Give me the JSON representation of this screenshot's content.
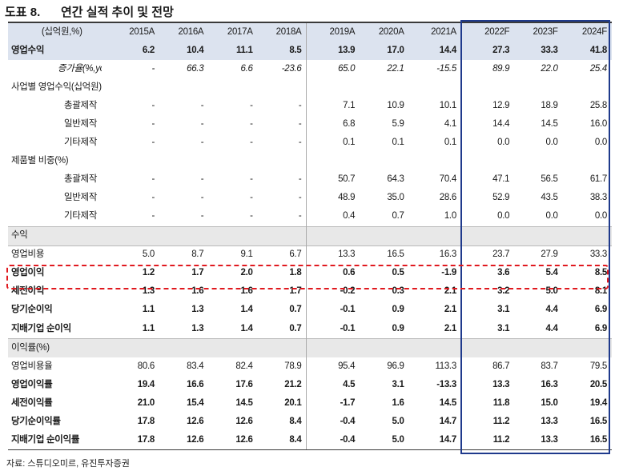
{
  "figure_label": "도표 8.",
  "title": "연간 실적 추이 및 전망",
  "header": {
    "unit": "(십억원,%)",
    "years": [
      "2015A",
      "2016A",
      "2017A",
      "2018A",
      "2019A",
      "2020A",
      "2021A",
      "2022F",
      "2023F",
      "2024F"
    ]
  },
  "rows": [
    {
      "label": "영업수익",
      "values": [
        "6.2",
        "10.4",
        "11.1",
        "8.5",
        "13.9",
        "17.0",
        "14.4",
        "27.3",
        "33.3",
        "41.8"
      ]
    },
    {
      "label": "증가율(%,yoy)",
      "values": [
        "-",
        "66.3",
        "6.6",
        "-23.6",
        "65.0",
        "22.1",
        "-15.5",
        "89.9",
        "22.0",
        "25.4"
      ]
    },
    {
      "label": "사업별 영업수익(십억원)",
      "values": [
        "",
        "",
        "",
        "",
        "",
        "",
        "",
        "",
        "",
        ""
      ]
    },
    {
      "label": "총괄제작",
      "values": [
        "-",
        "-",
        "-",
        "-",
        "7.1",
        "10.9",
        "10.1",
        "12.9",
        "18.9",
        "25.8"
      ]
    },
    {
      "label": "일반제작",
      "values": [
        "-",
        "-",
        "-",
        "-",
        "6.8",
        "5.9",
        "4.1",
        "14.4",
        "14.5",
        "16.0"
      ]
    },
    {
      "label": "기타제작",
      "values": [
        "-",
        "-",
        "-",
        "-",
        "0.1",
        "0.1",
        "0.1",
        "0.0",
        "0.0",
        "0.0"
      ]
    },
    {
      "label": "제품별 비중(%)",
      "values": [
        "",
        "",
        "",
        "",
        "",
        "",
        "",
        "",
        "",
        ""
      ]
    },
    {
      "label": "총괄제작",
      "values": [
        "-",
        "-",
        "-",
        "-",
        "50.7",
        "64.3",
        "70.4",
        "47.1",
        "56.5",
        "61.7"
      ]
    },
    {
      "label": "일반제작",
      "values": [
        "-",
        "-",
        "-",
        "-",
        "48.9",
        "35.0",
        "28.6",
        "52.9",
        "43.5",
        "38.3"
      ]
    },
    {
      "label": "기타제작",
      "values": [
        "-",
        "-",
        "-",
        "-",
        "0.4",
        "0.7",
        "1.0",
        "0.0",
        "0.0",
        "0.0"
      ]
    },
    {
      "label": "수익",
      "values": [
        "",
        "",
        "",
        "",
        "",
        "",
        "",
        "",
        "",
        ""
      ]
    },
    {
      "label": "영업비용",
      "values": [
        "5.0",
        "8.7",
        "9.1",
        "6.7",
        "13.3",
        "16.5",
        "16.3",
        "23.7",
        "27.9",
        "33.3"
      ]
    },
    {
      "label": "영업이익",
      "values": [
        "1.2",
        "1.7",
        "2.0",
        "1.8",
        "0.6",
        "0.5",
        "-1.9",
        "3.6",
        "5.4",
        "8.5"
      ]
    },
    {
      "label": "세전이익",
      "values": [
        "1.3",
        "1.6",
        "1.6",
        "1.7",
        "-0.2",
        "0.3",
        "2.1",
        "3.2",
        "5.0",
        "8.1"
      ]
    },
    {
      "label": "당기순이익",
      "values": [
        "1.1",
        "1.3",
        "1.4",
        "0.7",
        "-0.1",
        "0.9",
        "2.1",
        "3.1",
        "4.4",
        "6.9"
      ]
    },
    {
      "label": "지배기업 순이익",
      "values": [
        "1.1",
        "1.3",
        "1.4",
        "0.7",
        "-0.1",
        "0.9",
        "2.1",
        "3.1",
        "4.4",
        "6.9"
      ]
    },
    {
      "label": "이익률(%)",
      "values": [
        "",
        "",
        "",
        "",
        "",
        "",
        "",
        "",
        "",
        ""
      ]
    },
    {
      "label": "영업비용율",
      "values": [
        "80.6",
        "83.4",
        "82.4",
        "78.9",
        "95.4",
        "96.9",
        "113.3",
        "86.7",
        "83.7",
        "79.5"
      ]
    },
    {
      "label": "영업이익률",
      "values": [
        "19.4",
        "16.6",
        "17.6",
        "21.2",
        "4.5",
        "3.1",
        "-13.3",
        "13.3",
        "16.3",
        "20.5"
      ]
    },
    {
      "label": "세전이익률",
      "values": [
        "21.0",
        "15.4",
        "14.5",
        "20.1",
        "-1.7",
        "1.6",
        "14.5",
        "11.8",
        "15.0",
        "19.4"
      ]
    },
    {
      "label": "당기순이익률",
      "values": [
        "17.8",
        "12.6",
        "12.6",
        "8.4",
        "-0.4",
        "5.0",
        "14.7",
        "11.2",
        "13.3",
        "16.5"
      ]
    },
    {
      "label": "지배기업 순이익률",
      "values": [
        "17.8",
        "12.6",
        "12.6",
        "8.4",
        "-0.4",
        "5.0",
        "14.7",
        "11.2",
        "13.3",
        "16.5"
      ]
    }
  ],
  "source": "자료: 스튜디오미르, 유진투자증권",
  "colors": {
    "header_fill": "#dce3ef",
    "band_fill": "#e8e8e8",
    "forecast_box": "#1f3a8c",
    "highlight_dash": "#e0191f"
  }
}
